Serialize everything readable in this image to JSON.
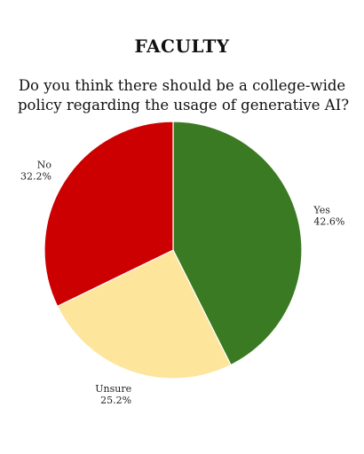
{
  "chart_data": {
    "type": "pie",
    "title": "FACULTY",
    "subtitle_lines": [
      "Do you think there should be a college-wide",
      "policy regarding the usage of generative AI?"
    ],
    "slices": [
      {
        "label": "Yes",
        "value": 42.6,
        "display": "42.6%",
        "color": "#3a7a22"
      },
      {
        "label": "Unsure",
        "value": 25.2,
        "display": "25.2%",
        "color": "#fde59b"
      },
      {
        "label": "No",
        "value": 32.2,
        "display": "32.2%",
        "color": "#cc0000"
      }
    ],
    "start_angle": "12 o'clock",
    "direction": "clockwise"
  }
}
